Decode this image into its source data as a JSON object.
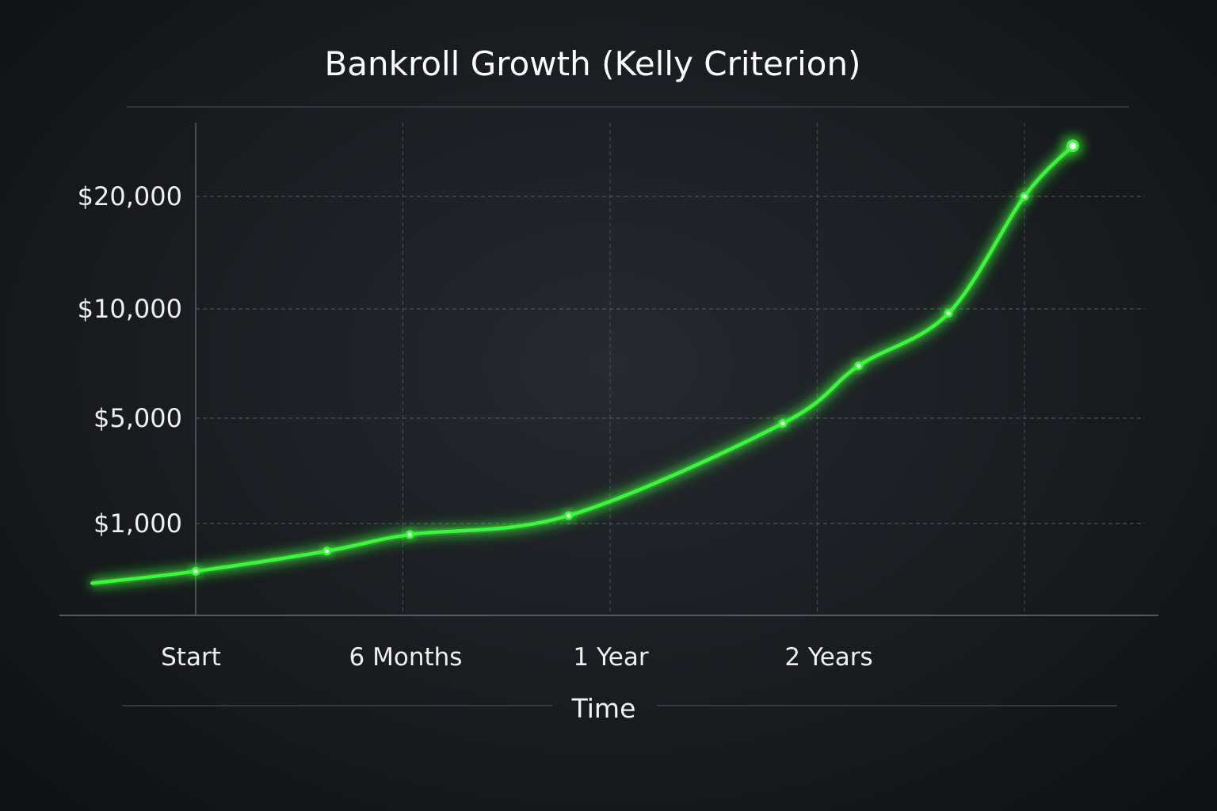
{
  "chart_data": {
    "type": "line",
    "title": "Bankroll Growth (Kelly Criterion)",
    "xlabel": "Time",
    "ylabel": "",
    "y_scale": "nonlinear",
    "y_ticks": [
      {
        "label": "$1,000",
        "value": 1000
      },
      {
        "label": "$5,000",
        "value": 5000
      },
      {
        "label": "$10,000",
        "value": 10000
      },
      {
        "label": "$20,000",
        "value": 20000
      }
    ],
    "x_ticks": [
      {
        "label": "Start",
        "value": 0
      },
      {
        "label": "6 Months",
        "value": 6
      },
      {
        "label": "1 Year",
        "value": 12
      },
      {
        "label": "2 Years",
        "value": 18
      }
    ],
    "extra_gridline_x": 24,
    "series": [
      {
        "color": "#3df53d",
        "points": [
          {
            "x": -3,
            "y": 350
          },
          {
            "x": 0,
            "y": 480
          },
          {
            "x": 3.8,
            "y": 700
          },
          {
            "x": 6.2,
            "y": 880
          },
          {
            "x": 10.8,
            "y": 1300
          },
          {
            "x": 17,
            "y": 4800
          },
          {
            "x": 19.2,
            "y": 7400
          },
          {
            "x": 21.8,
            "y": 9800
          },
          {
            "x": 24,
            "y": 20000
          },
          {
            "x": 25.4,
            "y": 24500
          }
        ],
        "markers": [
          {
            "x": 0,
            "y": 480
          },
          {
            "x": 3.8,
            "y": 700
          },
          {
            "x": 6.2,
            "y": 880
          },
          {
            "x": 10.8,
            "y": 1300
          },
          {
            "x": 17,
            "y": 4800
          },
          {
            "x": 19.2,
            "y": 7400
          },
          {
            "x": 21.8,
            "y": 9800
          },
          {
            "x": 24,
            "y": 20000
          },
          {
            "x": 25.4,
            "y": 24500
          }
        ]
      }
    ],
    "grid": true,
    "legend": "none"
  }
}
